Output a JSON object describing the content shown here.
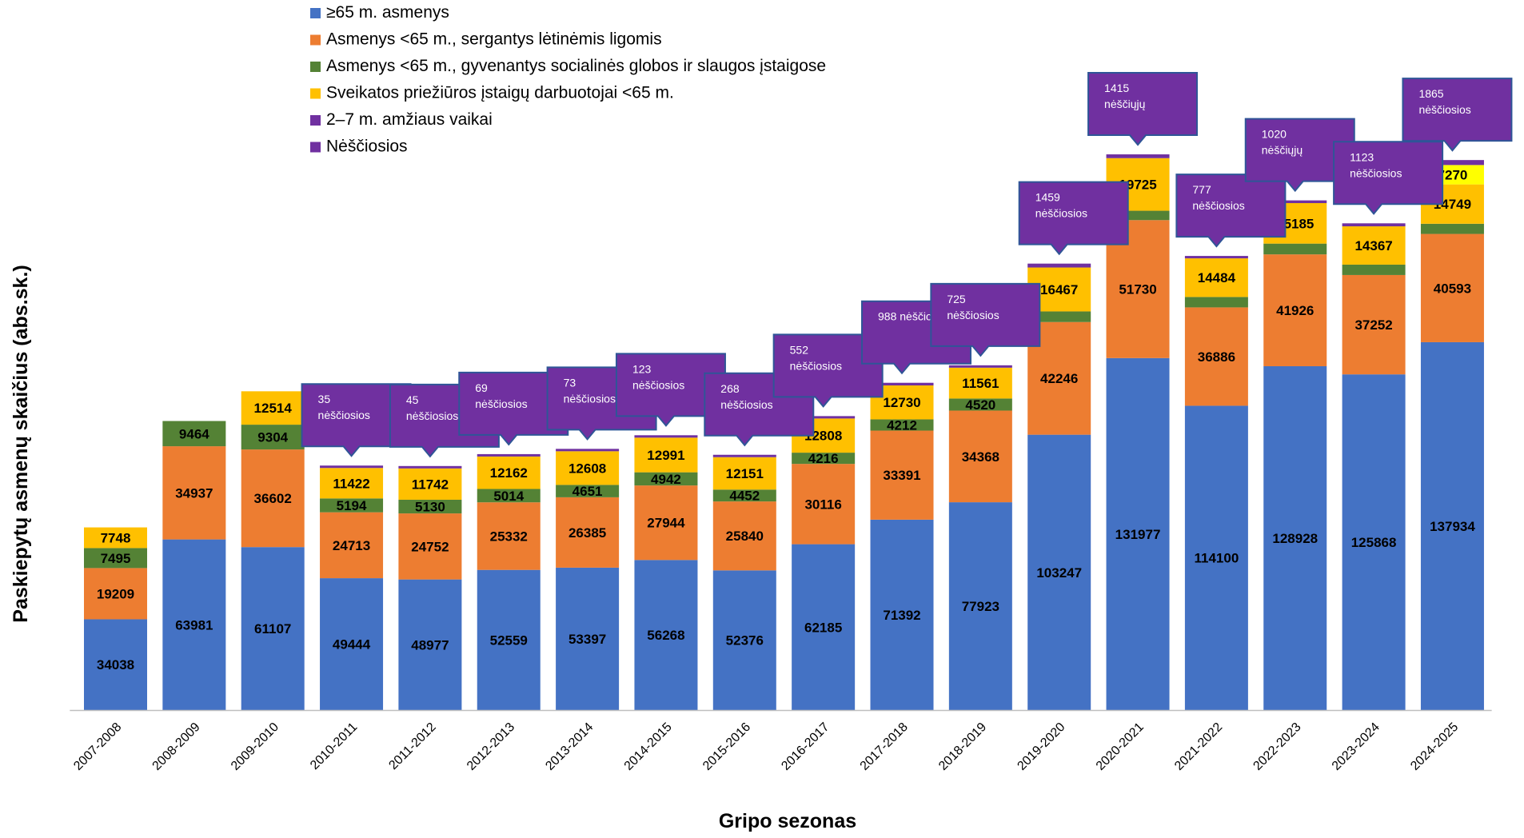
{
  "chart_data": {
    "type": "bar",
    "stacked": true,
    "title": "",
    "xlabel": "Gripo sezonas",
    "ylabel": "Paskiepytų asmenų skaičius (abs.sk.)",
    "ylim": [
      0,
      230000
    ],
    "grid": false,
    "legend_position": "top-left",
    "categories": [
      "2007-2008",
      "2008-2009",
      "2009-2010",
      "2010-2011",
      "2011-2012",
      "2012-2013",
      "2013-2014",
      "2014-2015",
      "2015-2016",
      "2016-2017",
      "2017-2018",
      "2018-2019",
      "2019-2020",
      "2020-2021",
      "2021-2022",
      "2022-2023",
      "2023-2024",
      "2024-2025"
    ],
    "series": [
      {
        "name": "≥65 m. asmenys",
        "color": "#4472C4",
        "values": [
          34038,
          63981,
          61107,
          49444,
          48977,
          52559,
          53397,
          56268,
          52376,
          62185,
          71392,
          77923,
          103247,
          131977,
          114100,
          128928,
          125868,
          137934
        ]
      },
      {
        "name": "Asmenys <65 m., sergantys lėtinėmis ligomis",
        "color": "#ED7D31",
        "values": [
          19209,
          34937,
          36602,
          24713,
          24752,
          25332,
          26385,
          27944,
          25840,
          30116,
          33391,
          34368,
          42246,
          51730,
          36886,
          41926,
          37252,
          40593
        ]
      },
      {
        "name": "Asmenys <65 m., gyvenantys socialinės globos ir slaugos įstaigose",
        "color": "#548235",
        "values": [
          7495,
          9464,
          9304,
          5194,
          5130,
          5014,
          4651,
          4942,
          4452,
          4216,
          4212,
          4520,
          3982,
          3516,
          3906,
          4047,
          3896,
          3821
        ]
      },
      {
        "name": "Sveikatos priežiūros įstaigų darbuotojai <65 m.",
        "color": "#FFC000",
        "values": [
          7748,
          null,
          12514,
          11422,
          11742,
          12162,
          12608,
          12991,
          12151,
          12808,
          12730,
          11561,
          16467,
          19725,
          14484,
          15185,
          14367,
          14749
        ]
      },
      {
        "name": "2–7 m. amžiaus vaikai",
        "color": "#7030A0",
        "values": [
          null,
          null,
          null,
          null,
          null,
          null,
          null,
          null,
          null,
          null,
          null,
          null,
          null,
          null,
          null,
          null,
          null,
          7270
        ]
      },
      {
        "name": "Nėščiosios",
        "color": "#7030A0",
        "values": [
          null,
          null,
          null,
          35,
          45,
          69,
          73,
          123,
          268,
          552,
          988,
          725,
          1459,
          1415,
          777,
          1020,
          1123,
          1865
        ]
      }
    ],
    "callouts": [
      {
        "category": "2010-2011",
        "lines": [
          "35",
          "nėščiosios"
        ]
      },
      {
        "category": "2011-2012",
        "lines": [
          "45",
          "nėščiosios"
        ]
      },
      {
        "category": "2012-2013",
        "lines": [
          "69",
          "nėščiosios"
        ]
      },
      {
        "category": "2013-2014",
        "lines": [
          "73",
          "nėščiosios"
        ]
      },
      {
        "category": "2014-2015",
        "lines": [
          "123",
          "nėščiosios"
        ]
      },
      {
        "category": "2015-2016",
        "lines": [
          "268",
          "nėščiosios"
        ]
      },
      {
        "category": "2016-2017",
        "lines": [
          "552",
          "nėščiosios"
        ]
      },
      {
        "category": "2017-2018",
        "lines": [
          "988 nėščiosios"
        ]
      },
      {
        "category": "2018-2019",
        "lines": [
          "725",
          "nėščiosios"
        ]
      },
      {
        "category": "2019-2020",
        "lines": [
          "1459",
          "nėščiosios"
        ]
      },
      {
        "category": "2020-2021",
        "lines": [
          "1415",
          "nėščiųjų"
        ]
      },
      {
        "category": "2021-2022",
        "lines": [
          "777",
          "nėščiosios"
        ]
      },
      {
        "category": "2022-2023",
        "lines": [
          "1020",
          "nėščiųjų"
        ]
      },
      {
        "category": "2023-2024",
        "lines": [
          "1123",
          "nėščiosios"
        ]
      },
      {
        "category": "2024-2025",
        "lines": [
          "1865",
          "nėščiosios"
        ]
      }
    ],
    "colors": {
      "children_segment": "#FFFF00",
      "callout_fill": "#7030A0",
      "callout_border": "#2F5597",
      "axis": "#BFBFBF"
    }
  }
}
